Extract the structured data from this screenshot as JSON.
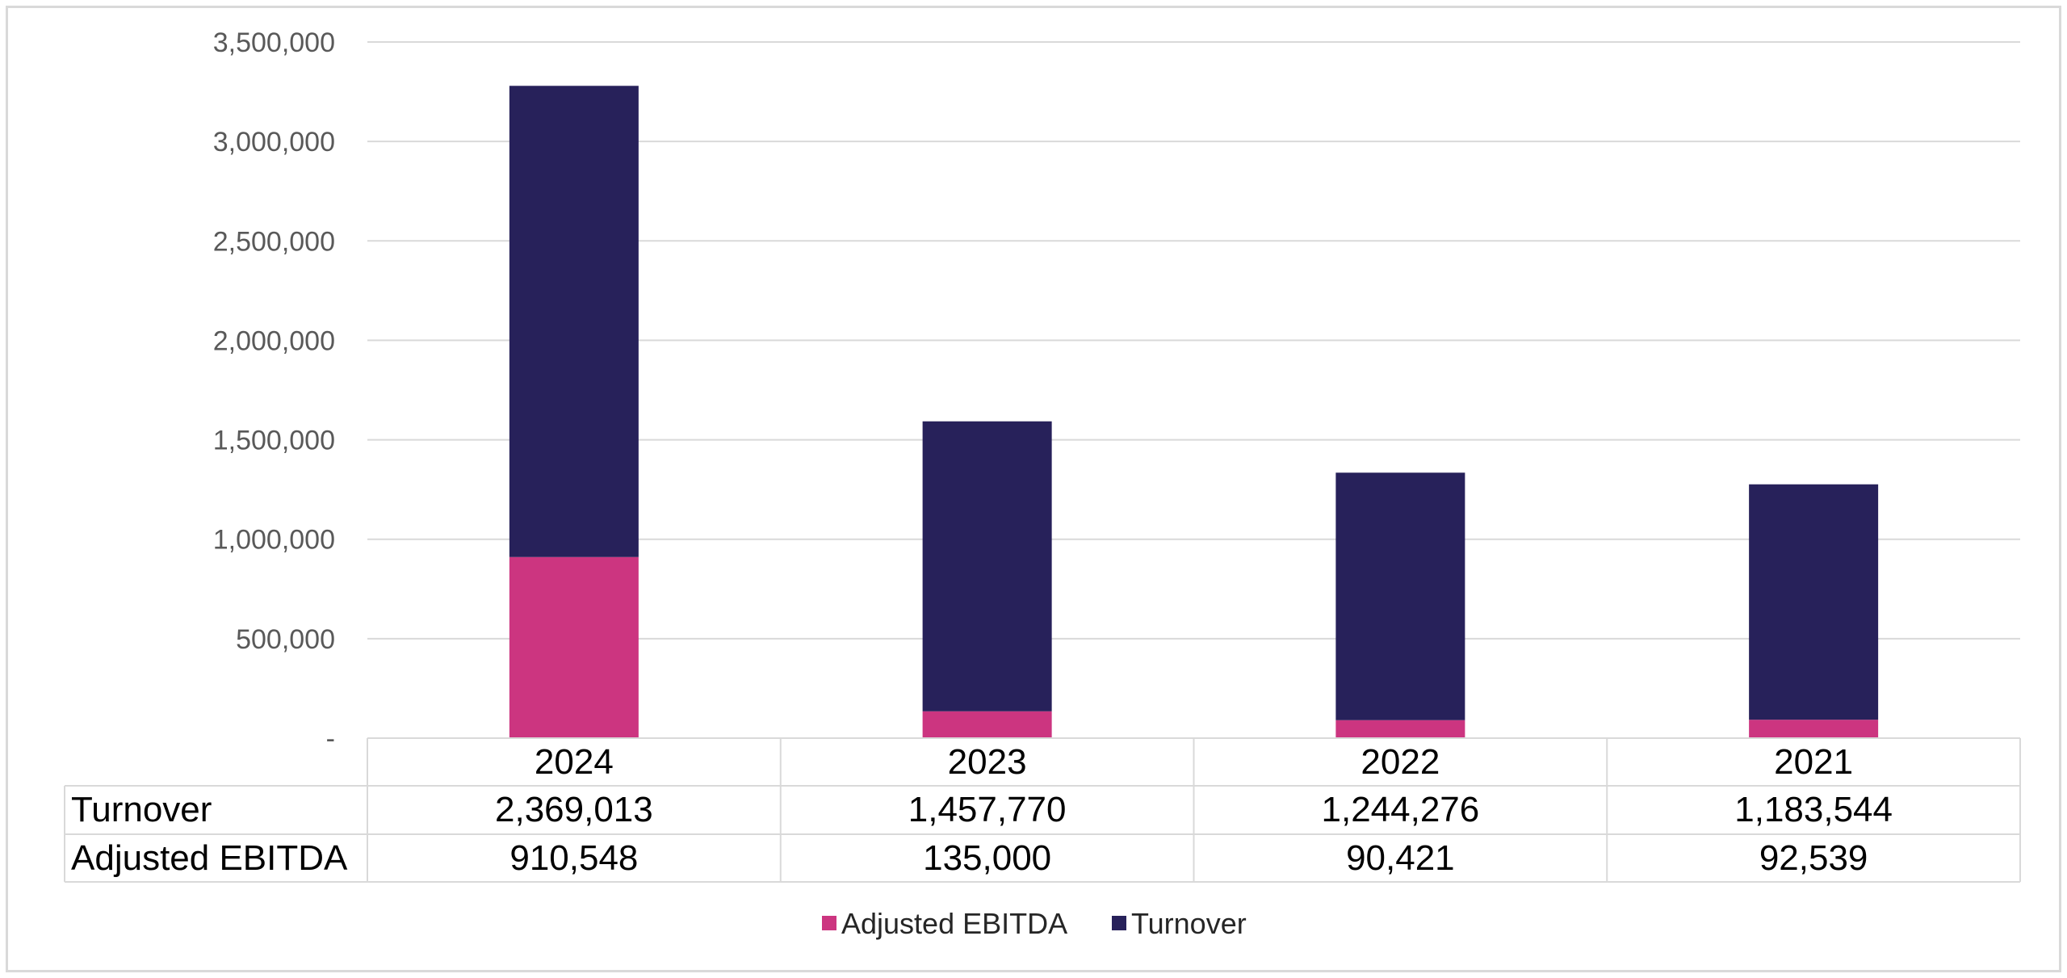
{
  "chart_data": {
    "type": "bar",
    "stacked": true,
    "categories": [
      "2024",
      "2023",
      "2022",
      "2021"
    ],
    "series": [
      {
        "name": "Adjusted EBITDA",
        "values": [
          910548,
          135000,
          90421,
          92539
        ],
        "color": "#cc3580"
      },
      {
        "name": "Turnover",
        "values": [
          2369013,
          1457770,
          1244276,
          1183544
        ],
        "color": "#27215a"
      }
    ],
    "ylim": [
      0,
      3500000
    ],
    "yticks": [
      {
        "value": 0,
        "label": "-"
      },
      {
        "value": 500000,
        "label": "500,000"
      },
      {
        "value": 1000000,
        "label": "1,000,000"
      },
      {
        "value": 1500000,
        "label": "1,500,000"
      },
      {
        "value": 2000000,
        "label": "2,000,000"
      },
      {
        "value": 2500000,
        "label": "2,500,000"
      },
      {
        "value": 3000000,
        "label": "3,000,000"
      },
      {
        "value": 3500000,
        "label": "3,500,000"
      }
    ],
    "grid": true,
    "legend_position": "bottom",
    "data_table": {
      "rows": [
        {
          "label": "Turnover",
          "values": [
            "2,369,013",
            "1,457,770",
            "1,244,276",
            "1,183,544"
          ]
        },
        {
          "label": "Adjusted EBITDA",
          "values": [
            "910,548",
            "135,000",
            "90,421",
            "92,539"
          ]
        }
      ]
    },
    "legend": [
      {
        "label": "Adjusted EBITDA",
        "color": "#cc3580"
      },
      {
        "label": "Turnover",
        "color": "#27215a"
      }
    ],
    "colors": {
      "grid": "#d9d9d9",
      "table_border": "#d9d9d9"
    }
  }
}
